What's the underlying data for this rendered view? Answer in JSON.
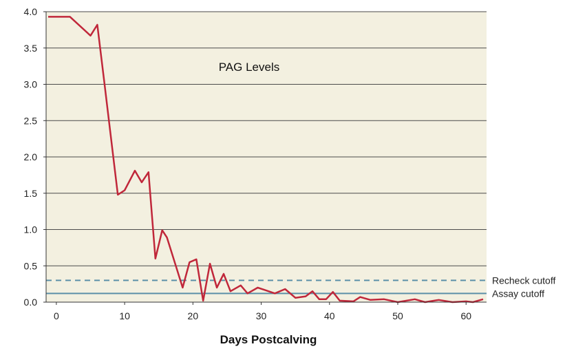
{
  "chart_data": {
    "type": "line",
    "title": "PAG Levels",
    "xlabel": "Days Postcalving",
    "ylabel": "",
    "xlim": [
      -1.5,
      63
    ],
    "ylim": [
      0,
      4.0
    ],
    "x_ticks": [
      0,
      10,
      20,
      30,
      40,
      50,
      60
    ],
    "y_ticks": [
      "0.0",
      "0.5",
      "1.0",
      "1.5",
      "2.0",
      "2.5",
      "3.0",
      "3.5",
      "4.0"
    ],
    "grid": "horizontal",
    "colors": {
      "background": "#f3f0e0",
      "series": "#c0273a",
      "reference": "#5b8fa8",
      "grid": "#4a4a4a"
    },
    "series": [
      {
        "values_x": [
          -1.2,
          2,
          5,
          6,
          7,
          9,
          10,
          11.5,
          12.5,
          13.5,
          14.5,
          15.5,
          16.2,
          18.5,
          19.5,
          20.5,
          21.5,
          22.5,
          23.5,
          24.5,
          25.5,
          27,
          28,
          29.5,
          32,
          33.5,
          35,
          36.5,
          37.5,
          38.5,
          39.5,
          40.5,
          41.5,
          43.5,
          44.5,
          46,
          48,
          50,
          52.5,
          54,
          56,
          58,
          60,
          61,
          62.5
        ],
        "values_y": [
          3.93,
          3.93,
          3.67,
          3.82,
          3.05,
          1.48,
          1.54,
          1.81,
          1.65,
          1.79,
          0.6,
          0.99,
          0.89,
          0.2,
          0.55,
          0.59,
          0.02,
          0.53,
          0.2,
          0.39,
          0.15,
          0.23,
          0.12,
          0.2,
          0.12,
          0.18,
          0.06,
          0.08,
          0.15,
          0.04,
          0.04,
          0.14,
          0.02,
          0.01,
          0.07,
          0.03,
          0.04,
          0.0,
          0.04,
          0.0,
          0.03,
          0.0,
          0.01,
          0.0,
          0.04
        ]
      }
    ],
    "reference_lines": [
      {
        "label": "Recheck cutoff",
        "y": 0.3,
        "style": "dashed"
      },
      {
        "label": "Assay cutoff",
        "y": 0.12,
        "style": "solid"
      }
    ]
  }
}
